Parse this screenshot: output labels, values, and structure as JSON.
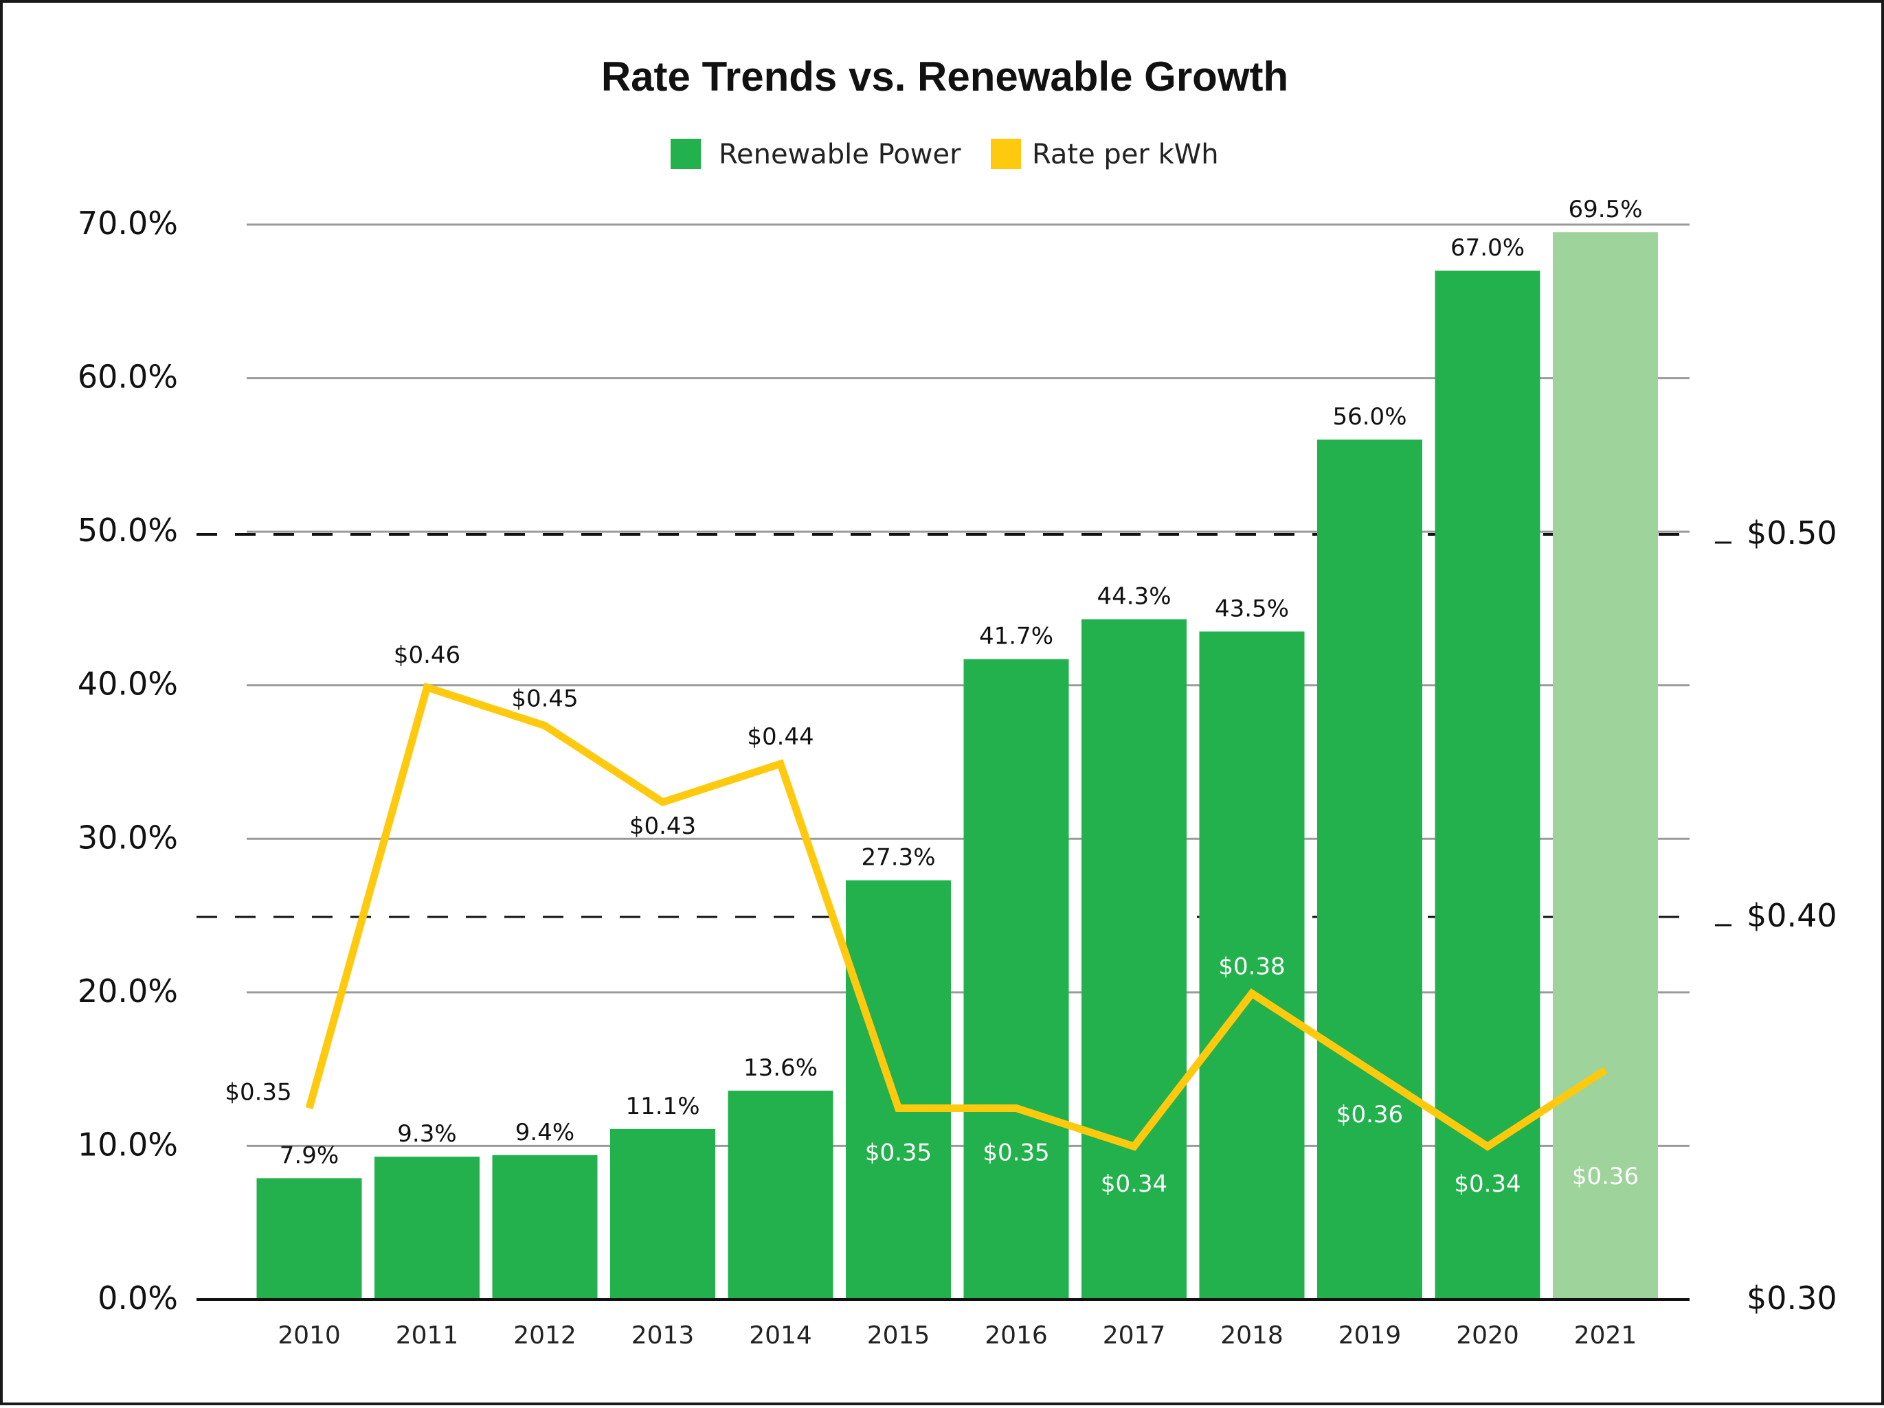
{
  "chart_data": {
    "type": "bar",
    "title": "Rate Trends vs. Renewable Growth",
    "categories": [
      "2010",
      "2011",
      "2012",
      "2013",
      "2014",
      "2015",
      "2016",
      "2017",
      "2018",
      "2019",
      "2020",
      "2021"
    ],
    "series": [
      {
        "name": "Renewable Power",
        "type": "bar",
        "axis": "left",
        "color": "#22b14c",
        "highlight_color": "#9fd39c",
        "values": [
          7.9,
          9.3,
          9.4,
          11.1,
          13.6,
          27.3,
          41.7,
          44.3,
          43.5,
          56.0,
          67.0,
          69.5
        ],
        "value_labels": [
          "7.9%",
          "9.3%",
          "9.4%",
          "11.1%",
          "13.6%",
          "27.3%",
          "41.7%",
          "44.3%",
          "43.5%",
          "56.0%",
          "67.0%",
          "69.5%"
        ]
      },
      {
        "name": "Rate per kWh",
        "type": "line",
        "axis": "right",
        "color": "#ffc90e",
        "values": [
          0.35,
          0.46,
          0.45,
          0.43,
          0.44,
          0.35,
          0.35,
          0.34,
          0.38,
          0.36,
          0.34,
          0.36
        ],
        "value_labels": [
          "$0.35",
          "$0.46",
          "$0.45",
          "$0.43",
          "$0.44",
          "$0.35",
          "$0.35",
          "$0.34",
          "$0.38",
          "$0.36",
          "$0.34",
          "$0.36"
        ]
      }
    ],
    "y_left": {
      "ylim": [
        0,
        70
      ],
      "ticks": [
        0,
        10,
        20,
        30,
        40,
        50,
        60,
        70
      ],
      "tick_labels": [
        "0.0%",
        "10.0%",
        "20.0%",
        "30.0%",
        "40.0%",
        "50.0%",
        "60.0%",
        "70.0%"
      ]
    },
    "y_right": {
      "ylim": [
        0.3,
        0.58
      ],
      "ticks": [
        0.3,
        0.4,
        0.5
      ],
      "tick_labels": [
        "$0.30",
        "$0.40",
        "$0.50"
      ]
    },
    "grid": true,
    "legend_position": "top-center",
    "reference_lines": [
      {
        "axis": "right",
        "value": 0.4,
        "style": "dashed"
      },
      {
        "axis": "right",
        "value": 0.5,
        "style": "dashed"
      }
    ]
  }
}
